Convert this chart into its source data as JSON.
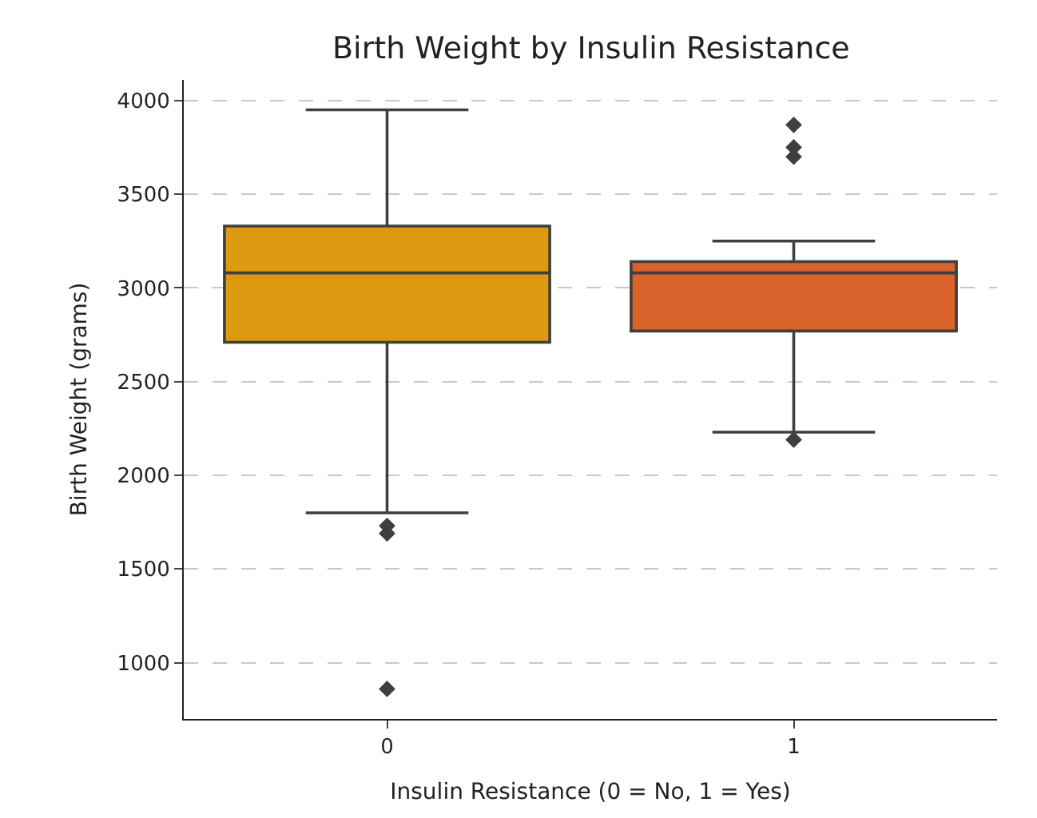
{
  "chart_data": {
    "type": "box",
    "title": "Birth Weight by Insulin Resistance",
    "xlabel": "Insulin Resistance (0 = No, 1 = Yes)",
    "ylabel": "Birth Weight (grams)",
    "categories": [
      "0",
      "1"
    ],
    "colors": [
      "#dd9a10",
      "#d9632b"
    ],
    "boxes": [
      {
        "low": 1800,
        "q1": 2710,
        "median": 3080,
        "q3": 3330,
        "high": 3950,
        "outliers": [
          1730,
          1690,
          860
        ]
      },
      {
        "low": 2230,
        "q1": 2770,
        "median": 3080,
        "q3": 3140,
        "high": 3250,
        "outliers": [
          3870,
          3750,
          3700,
          2190
        ]
      }
    ],
    "ylim": [
      700,
      4110
    ],
    "yticks": [
      1000,
      1500,
      2000,
      2500,
      3000,
      3500,
      4000
    ],
    "grid": "y",
    "marker": "diamond"
  }
}
